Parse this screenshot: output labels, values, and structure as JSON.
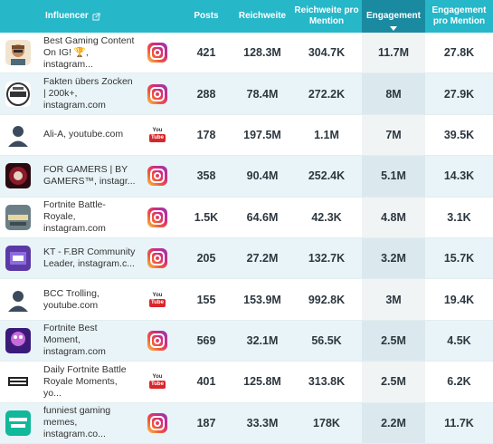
{
  "header": {
    "influencer": "Influencer",
    "posts": "Posts",
    "reach": "Reichweite",
    "reach_per_mention": "Reichweite pro Mention",
    "engagement": "Engagement",
    "engagement_per_mention": "Engagement pro Mention"
  },
  "sort": {
    "column": "engagement",
    "direction": "descending"
  },
  "colors": {
    "header": "#26b7c9",
    "sorted_header": "#1a8aa0",
    "alt_row": "#e9f4f8"
  },
  "platform_labels": {
    "youtube_top": "You",
    "youtube_bottom": "Tube"
  },
  "rows": [
    {
      "name": "Best Gaming Content On IG! 🏆, instagram...",
      "platform": "instagram-icon",
      "posts": "421",
      "reach": "128.3M",
      "rpm": "304.7K",
      "eng": "11.7M",
      "epm": "27.8K"
    },
    {
      "name": "Fakten übers Zocken | 200k+, instagram.com",
      "platform": "instagram-icon",
      "posts": "288",
      "reach": "78.4M",
      "rpm": "272.2K",
      "eng": "8M",
      "epm": "27.9K"
    },
    {
      "name": "Ali-A, youtube.com",
      "platform": "youtube-icon",
      "posts": "178",
      "reach": "197.5M",
      "rpm": "1.1M",
      "eng": "7M",
      "epm": "39.5K"
    },
    {
      "name": "FOR GAMERS | BY GAMERS™, instagr...",
      "platform": "instagram-icon",
      "posts": "358",
      "reach": "90.4M",
      "rpm": "252.4K",
      "eng": "5.1M",
      "epm": "14.3K"
    },
    {
      "name": "Fortnite Battle-Royale, instagram.com",
      "platform": "instagram-icon",
      "posts": "1.5K",
      "reach": "64.6M",
      "rpm": "42.3K",
      "eng": "4.8M",
      "epm": "3.1K"
    },
    {
      "name": "KT - F.BR Community Leader, instagram.c...",
      "platform": "instagram-icon",
      "posts": "205",
      "reach": "27.2M",
      "rpm": "132.7K",
      "eng": "3.2M",
      "epm": "15.7K"
    },
    {
      "name": "BCC Trolling, youtube.com",
      "platform": "youtube-icon",
      "posts": "155",
      "reach": "153.9M",
      "rpm": "992.8K",
      "eng": "3M",
      "epm": "19.4K"
    },
    {
      "name": "Fortnite Best Moment, instagram.com",
      "platform": "instagram-icon",
      "posts": "569",
      "reach": "32.1M",
      "rpm": "56.5K",
      "eng": "2.5M",
      "epm": "4.5K"
    },
    {
      "name": "Daily Fortnite Battle Royale Moments, yo...",
      "platform": "youtube-icon",
      "posts": "401",
      "reach": "125.8M",
      "rpm": "313.8K",
      "eng": "2.5M",
      "epm": "6.2K"
    },
    {
      "name": "funniest gaming memes, instagram.co...",
      "platform": "instagram-icon",
      "posts": "187",
      "reach": "33.3M",
      "rpm": "178K",
      "eng": "2.2M",
      "epm": "11.7K"
    }
  ]
}
